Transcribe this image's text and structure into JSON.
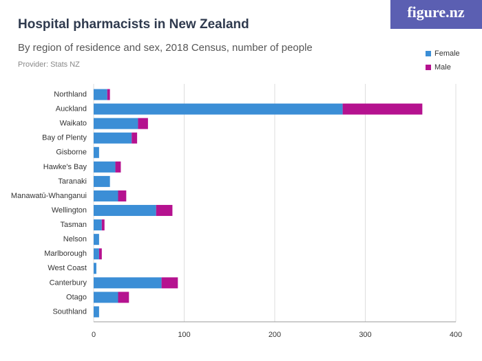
{
  "chart_data": {
    "type": "stacked_barh",
    "title": "Hospital pharmacists in New Zealand",
    "subtitle": "By region of residence and sex, 2018 Census, number of people",
    "provider": "Provider: Stats NZ",
    "logo": "figure.nz",
    "categories": [
      "Northland",
      "Auckland",
      "Waikato",
      "Bay of Plenty",
      "Gisborne",
      "Hawke's Bay",
      "Taranaki",
      "Manawatū-Whanganui",
      "Wellington",
      "Tasman",
      "Nelson",
      "Marlborough",
      "West Coast",
      "Canterbury",
      "Otago",
      "Southland"
    ],
    "series": [
      {
        "name": "Female",
        "color": "#3b8ed6",
        "values": [
          15,
          275,
          49,
          42,
          6,
          24,
          18,
          27,
          69,
          9,
          6,
          6,
          3,
          75,
          27,
          6
        ]
      },
      {
        "name": "Male",
        "color": "#b5128f",
        "values": [
          3,
          88,
          11,
          6,
          0,
          6,
          0,
          9,
          18,
          3,
          0,
          3,
          0,
          18,
          12,
          0
        ]
      }
    ],
    "xlim": [
      0,
      400
    ],
    "xticks": [
      0,
      100,
      200,
      300,
      400
    ],
    "grid": true,
    "legend": "top-right"
  }
}
